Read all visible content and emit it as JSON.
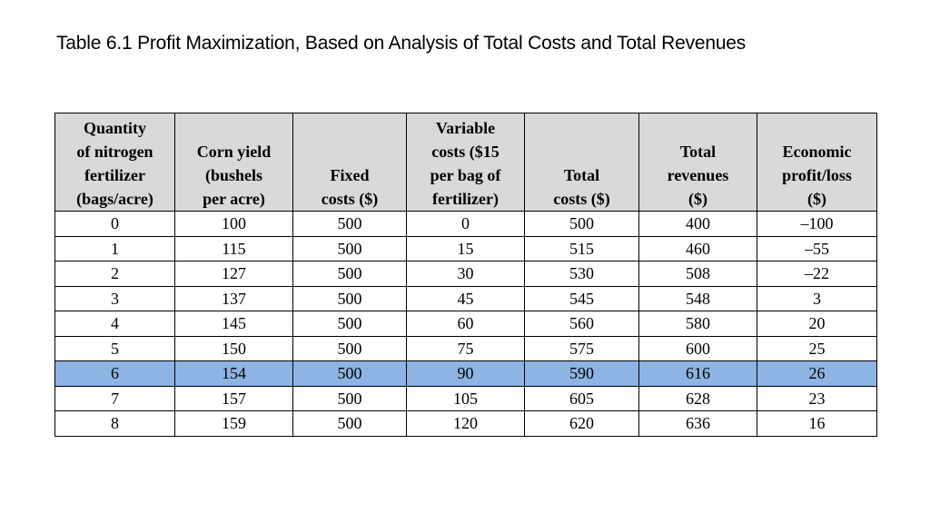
{
  "slide": {
    "title": "Table 6.1 Profit Maximization, Based on Analysis of Total Costs and Total Revenues"
  },
  "table": {
    "highlight_color": "#8db4e2",
    "header_bg": "#d9d9d9",
    "columns": [
      {
        "lines": [
          "Quantity",
          "of nitrogen",
          "fertilizer",
          "(bags/acre)"
        ]
      },
      {
        "lines": [
          "Corn yield",
          "(bushels",
          "per acre)"
        ]
      },
      {
        "lines": [
          "Fixed",
          "costs ($)"
        ]
      },
      {
        "lines": [
          "Variable",
          "costs ($15",
          "per bag of",
          "fertilizer)"
        ]
      },
      {
        "lines": [
          "Total",
          "costs ($)"
        ]
      },
      {
        "lines": [
          "Total",
          "revenues",
          "($)"
        ]
      },
      {
        "lines": [
          "Economic",
          "profit/loss",
          "($)"
        ]
      }
    ],
    "rows": [
      {
        "cells": [
          "0",
          "100",
          "500",
          "0",
          "500",
          "400",
          "–100"
        ]
      },
      {
        "cells": [
          "1",
          "115",
          "500",
          "15",
          "515",
          "460",
          "–55"
        ]
      },
      {
        "cells": [
          "2",
          "127",
          "500",
          "30",
          "530",
          "508",
          "–22"
        ]
      },
      {
        "cells": [
          "3",
          "137",
          "500",
          "45",
          "545",
          "548",
          "3"
        ]
      },
      {
        "cells": [
          "4",
          "145",
          "500",
          "60",
          "560",
          "580",
          "20"
        ]
      },
      {
        "cells": [
          "5",
          "150",
          "500",
          "75",
          "575",
          "600",
          "25"
        ]
      },
      {
        "cells": [
          "6",
          "154",
          "500",
          "90",
          "590",
          "616",
          "26"
        ]
      },
      {
        "cells": [
          "7",
          "157",
          "500",
          "105",
          "605",
          "628",
          "23"
        ]
      },
      {
        "cells": [
          "8",
          "159",
          "500",
          "120",
          "620",
          "636",
          "16"
        ]
      }
    ]
  }
}
